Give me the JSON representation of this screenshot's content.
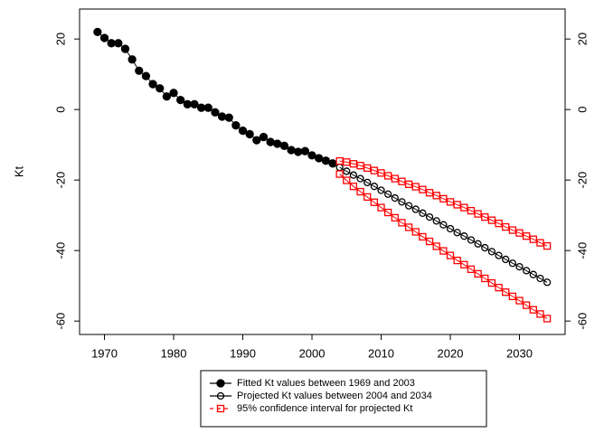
{
  "chart_data": {
    "type": "line",
    "y_label": "Kt",
    "xlim": [
      1966.4,
      2036.6
    ],
    "ylim": [
      -63.8,
      28.5
    ],
    "xticks": [
      1970,
      1980,
      1990,
      2000,
      2010,
      2020,
      2030
    ],
    "yticks": [
      -60,
      -40,
      -20,
      0,
      20
    ],
    "right_axis": true,
    "series": [
      {
        "name": "Fitted Kt values between 1969 and 2003",
        "color": "#000000",
        "marker": "filled-circle",
        "x": [
          1969,
          1970,
          1971,
          1972,
          1973,
          1974,
          1975,
          1976,
          1977,
          1978,
          1979,
          1980,
          1981,
          1982,
          1983,
          1984,
          1985,
          1986,
          1987,
          1988,
          1989,
          1990,
          1991,
          1992,
          1993,
          1994,
          1995,
          1996,
          1997,
          1998,
          1999,
          2000,
          2001,
          2002,
          2003
        ],
        "values": [
          22,
          20.3,
          18.8,
          18.8,
          17.2,
          14.2,
          11,
          9.5,
          7.2,
          6,
          3.7,
          4.7,
          2.7,
          1.5,
          1.5,
          0.5,
          0.5,
          -0.8,
          -2,
          -2.3,
          -4.5,
          -6,
          -7,
          -8.7,
          -7.8,
          -9.2,
          -9.7,
          -10.3,
          -11.5,
          -12,
          -11.8,
          -13,
          -13.8,
          -14.5,
          -15.3
        ]
      },
      {
        "name": "Projected Kt values between 2004 and 2034",
        "color": "#000000",
        "marker": "open-circle",
        "x": [
          2004,
          2005,
          2006,
          2007,
          2008,
          2009,
          2010,
          2011,
          2012,
          2013,
          2014,
          2015,
          2016,
          2017,
          2018,
          2019,
          2020,
          2021,
          2022,
          2023,
          2024,
          2025,
          2026,
          2027,
          2028,
          2029,
          2030,
          2031,
          2032,
          2033,
          2034
        ],
        "values": [
          -16.4,
          -17.5,
          -18.6,
          -19.6,
          -20.7,
          -21.8,
          -22.9,
          -24.0,
          -25.1,
          -26.2,
          -27.3,
          -28.3,
          -29.4,
          -30.5,
          -31.6,
          -32.7,
          -33.8,
          -34.9,
          -35.9,
          -37.0,
          -38.1,
          -39.2,
          -40.3,
          -41.4,
          -42.5,
          -43.6,
          -44.6,
          -45.7,
          -46.8,
          -47.9,
          -49.0
        ]
      },
      {
        "name": "95% confidence interval for projected Kt",
        "color": "#ff0000",
        "marker": "open-square",
        "x": [
          2004,
          2005,
          2006,
          2007,
          2008,
          2009,
          2010,
          2011,
          2012,
          2013,
          2014,
          2015,
          2016,
          2017,
          2018,
          2019,
          2020,
          2021,
          2022,
          2023,
          2024,
          2025,
          2026,
          2027,
          2028,
          2029,
          2030,
          2031,
          2032,
          2033,
          2034
        ],
        "upper": [
          -14.6,
          -14.9,
          -15.4,
          -15.9,
          -16.6,
          -17.3,
          -18.0,
          -18.8,
          -19.6,
          -20.4,
          -21.2,
          -21.9,
          -22.7,
          -23.6,
          -24.4,
          -25.3,
          -26.2,
          -27.0,
          -27.8,
          -28.7,
          -29.6,
          -30.5,
          -31.4,
          -32.3,
          -33.3,
          -34.2,
          -35.0,
          -35.9,
          -36.8,
          -37.8,
          -38.7
        ],
        "lower": [
          -18.3,
          -20.1,
          -21.8,
          -23.3,
          -24.8,
          -26.3,
          -27.8,
          -29.2,
          -30.7,
          -32.1,
          -33.4,
          -34.7,
          -36.1,
          -37.4,
          -38.8,
          -40.1,
          -41.4,
          -42.8,
          -44.0,
          -45.3,
          -46.6,
          -47.9,
          -49.2,
          -50.5,
          -51.8,
          -53.0,
          -54.2,
          -55.5,
          -56.8,
          -58.0,
          -59.3
        ]
      }
    ]
  }
}
